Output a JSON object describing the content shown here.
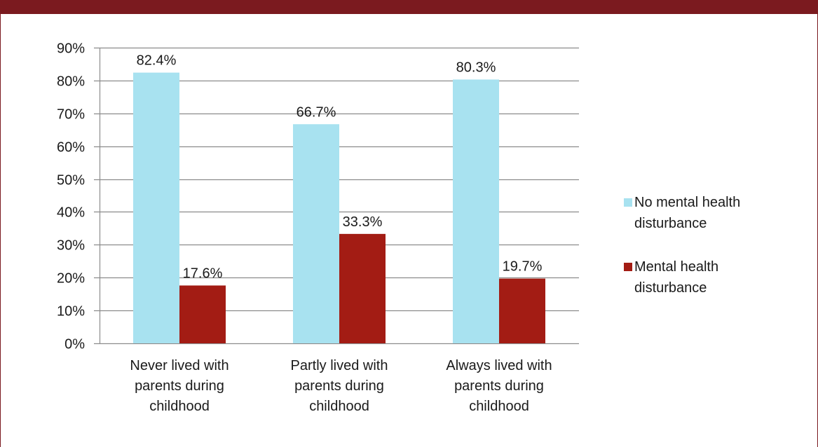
{
  "colors": {
    "frame": "#7b1a1f",
    "gridline": "#8c8c8c",
    "series_no": "#a8e2f0",
    "series_yes": "#a31c14"
  },
  "chart_data": {
    "type": "bar",
    "title": "",
    "xlabel": "",
    "ylabel": "",
    "ylim": [
      0,
      90
    ],
    "yticks": [
      0,
      10,
      20,
      30,
      40,
      50,
      60,
      70,
      80,
      90
    ],
    "ytick_labels": [
      "0%",
      "10%",
      "20%",
      "30%",
      "40%",
      "50%",
      "60%",
      "70%",
      "80%",
      "90%"
    ],
    "grid": true,
    "legend_position": "right",
    "categories": [
      [
        "Never lived with",
        "parents during",
        "childhood"
      ],
      [
        "Partly lived with",
        "parents during",
        "childhood"
      ],
      [
        "Always lived with",
        "parents during",
        "childhood"
      ]
    ],
    "series": [
      {
        "name": [
          "No mental health",
          "disturbance"
        ],
        "color": "#a8e2f0",
        "values": [
          82.4,
          66.7,
          80.3
        ],
        "labels": [
          "82.4%",
          "66.7%",
          "80.3%"
        ]
      },
      {
        "name": [
          "Mental health",
          "disturbance"
        ],
        "color": "#a31c14",
        "values": [
          17.6,
          33.3,
          19.7
        ],
        "labels": [
          "17.6%",
          "33.3%",
          "19.7%"
        ]
      }
    ]
  }
}
